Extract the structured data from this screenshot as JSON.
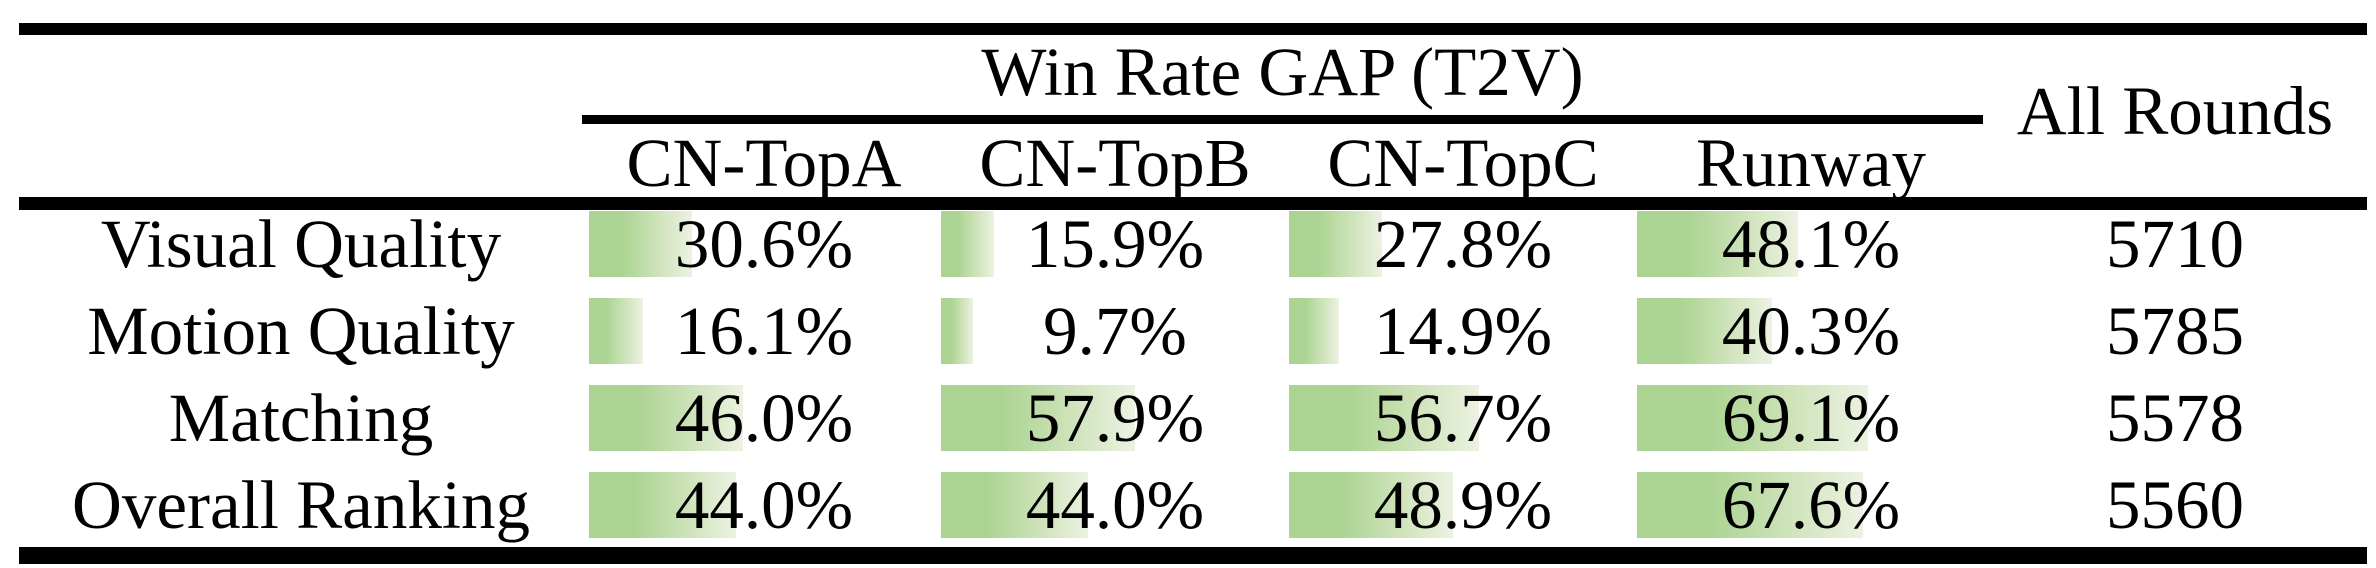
{
  "colors": {
    "bar_green": "#abd492",
    "bar_fade": "#ecf2e2",
    "rule_black": "#000000"
  },
  "table": {
    "title": "Win Rate GAP (T2V)",
    "rounds_header": "All Rounds",
    "model_headers": [
      "CN-TopA",
      "CN-TopB",
      "CN-TopC",
      "Runway"
    ],
    "rows": [
      {
        "label": "Visual Quality",
        "cells": [
          {
            "text": "30.6%",
            "value": 30.6
          },
          {
            "text": "15.9%",
            "value": 15.9
          },
          {
            "text": "27.8%",
            "value": 27.8
          },
          {
            "text": "48.1%",
            "value": 48.1
          }
        ],
        "rounds": "5710"
      },
      {
        "label": "Motion Quality",
        "cells": [
          {
            "text": "16.1%",
            "value": 16.1
          },
          {
            "text": "9.7%",
            "value": 9.7
          },
          {
            "text": "14.9%",
            "value": 14.9
          },
          {
            "text": "40.3%",
            "value": 40.3
          }
        ],
        "rounds": "5785"
      },
      {
        "label": "Matching",
        "cells": [
          {
            "text": "46.0%",
            "value": 46.0
          },
          {
            "text": "57.9%",
            "value": 57.9
          },
          {
            "text": "56.7%",
            "value": 56.7
          },
          {
            "text": "69.1%",
            "value": 69.1
          }
        ],
        "rounds": "5578"
      },
      {
        "label": "Overall Ranking",
        "cells": [
          {
            "text": "44.0%",
            "value": 44.0
          },
          {
            "text": "44.0%",
            "value": 44.0
          },
          {
            "text": "48.9%",
            "value": 48.9
          },
          {
            "text": "67.6%",
            "value": 67.6
          }
        ],
        "rounds": "5560"
      }
    ]
  },
  "chart_data": {
    "type": "table",
    "title": "Win Rate GAP (T2V)",
    "columns": [
      "CN-TopA",
      "CN-TopB",
      "CN-TopC",
      "Runway",
      "All Rounds"
    ],
    "row_labels": [
      "Visual Quality",
      "Motion Quality",
      "Matching",
      "Overall Ranking"
    ],
    "series": [
      {
        "name": "Visual Quality",
        "values": [
          30.6,
          15.9,
          27.8,
          48.1
        ],
        "all_rounds": 5710
      },
      {
        "name": "Motion Quality",
        "values": [
          16.1,
          9.7,
          14.9,
          40.3
        ],
        "all_rounds": 5785
      },
      {
        "name": "Matching",
        "values": [
          46.0,
          57.9,
          56.7,
          69.1
        ],
        "all_rounds": 5578
      },
      {
        "name": "Overall Ranking",
        "values": [
          44.0,
          44.0,
          48.9,
          67.6
        ],
        "all_rounds": 5560
      }
    ],
    "notes": "Green gradient in-cell data bars; bar length proportional to win-rate-gap percentage (about 3.35 px per percent)."
  }
}
